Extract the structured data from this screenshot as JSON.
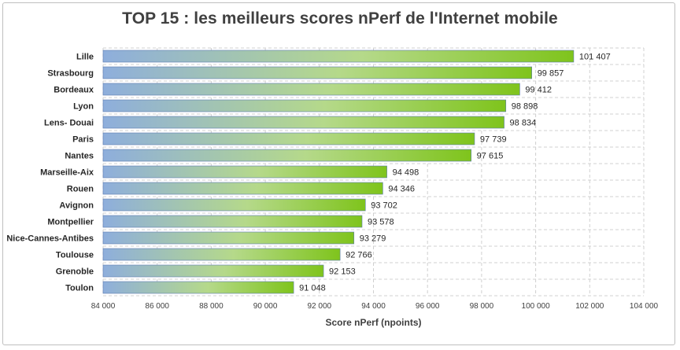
{
  "chart_data": {
    "type": "bar",
    "orientation": "horizontal",
    "title": "TOP 15 : les meilleurs scores nPerf de l'Internet mobile",
    "xlabel": "Score nPerf (npoints)",
    "ylabel": "",
    "xlim": [
      84000,
      104000
    ],
    "xticks": [
      84000,
      86000,
      88000,
      90000,
      92000,
      94000,
      96000,
      98000,
      100000,
      102000,
      104000
    ],
    "xtick_labels": [
      "84 000",
      "86 000",
      "88 000",
      "90 000",
      "92 000",
      "94 000",
      "96 000",
      "98 000",
      "100 000",
      "102 000",
      "104 000"
    ],
    "grid": true,
    "categories": [
      "Lille",
      "Strasbourg",
      "Bordeaux",
      "Lyon",
      "Lens- Douai",
      "Paris",
      "Nantes",
      "Marseille-Aix",
      "Rouen",
      "Avignon",
      "Montpellier",
      "Nice-Cannes-Antibes",
      "Toulouse",
      "Grenoble",
      "Toulon"
    ],
    "values": [
      101407,
      99857,
      99412,
      98898,
      98834,
      97739,
      97615,
      94498,
      94346,
      93702,
      93578,
      93279,
      92766,
      92153,
      91048
    ],
    "value_labels": [
      "101 407",
      "99 857",
      "99 412",
      "98 898",
      "98 834",
      "97 739",
      "97 615",
      "94 498",
      "94 346",
      "93 702",
      "93 578",
      "93 279",
      "92 766",
      "92 153",
      "91 048"
    ],
    "colors": {
      "bar_start": "#8eaedc",
      "bar_mid": "#b5d98a",
      "bar_end": "#7fc41c",
      "bar_stroke": "#5a7ab0",
      "grid": "#d0d0d0"
    }
  }
}
